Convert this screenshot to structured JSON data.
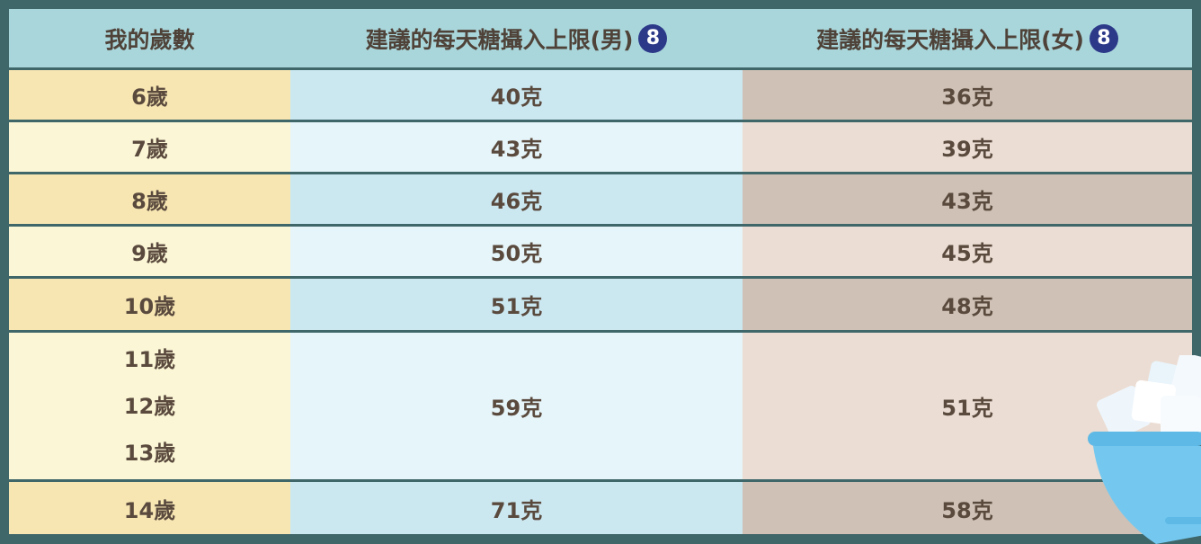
{
  "table": {
    "header": [
      {
        "text": "我的歲數"
      },
      {
        "text": "建議的每天糖攝入上限(男)",
        "note": "8"
      },
      {
        "text": "建議的每天糖攝入上限(女)",
        "note": "8"
      }
    ],
    "rows": [
      {
        "ages": [
          "6歲"
        ],
        "male": "40克",
        "female": "36克"
      },
      {
        "ages": [
          "7歲"
        ],
        "male": "43克",
        "female": "39克"
      },
      {
        "ages": [
          "8歲"
        ],
        "male": "46克",
        "female": "43克"
      },
      {
        "ages": [
          "9歲"
        ],
        "male": "50克",
        "female": "45克"
      },
      {
        "ages": [
          "10歲"
        ],
        "male": "51克",
        "female": "48克"
      },
      {
        "ages": [
          "11歲",
          "12歲",
          "13歲"
        ],
        "male": "59克",
        "female": "51克"
      },
      {
        "ages": [
          "14歲"
        ],
        "male": "71克",
        "female": "58克"
      }
    ]
  }
}
